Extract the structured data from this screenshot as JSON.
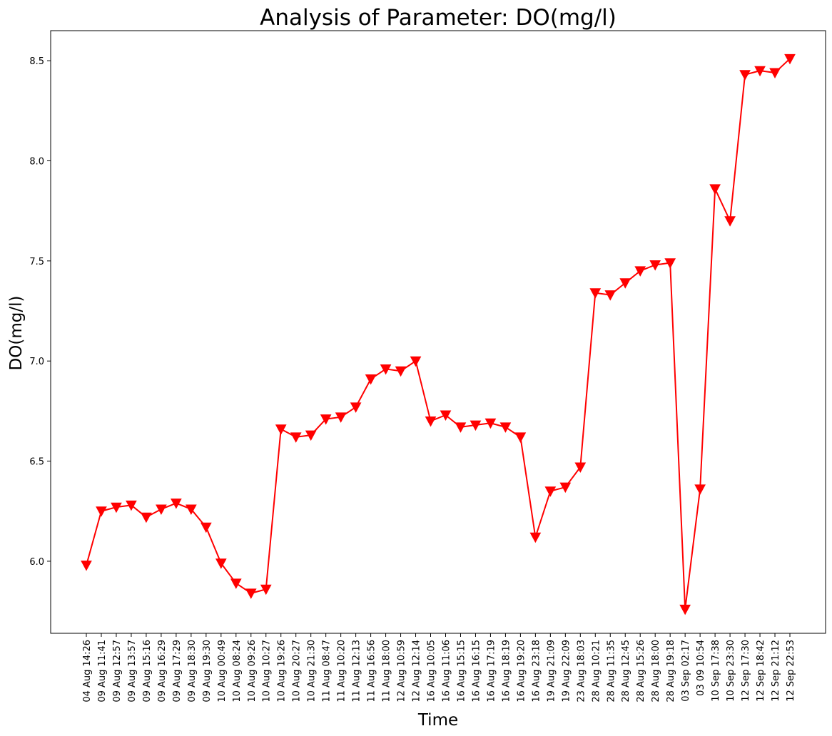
{
  "chart_data": {
    "type": "line",
    "title": "Analysis of Parameter: DO(mg/l)",
    "xlabel": "Time",
    "ylabel": "DO(mg/l)",
    "ylim": [
      5.64,
      8.65
    ],
    "yticks": [
      6.0,
      6.5,
      7.0,
      7.5,
      8.0,
      8.5
    ],
    "ytick_labels": [
      "6.0",
      "6.5",
      "7.0",
      "7.5",
      "8.0",
      "8.5"
    ],
    "grid": false,
    "legend": "none",
    "colors": {
      "series": "#ff0000",
      "axis": "#000000"
    },
    "marker": "triangle-down",
    "categories": [
      "04 Aug 14:26",
      "09 Aug 11:41",
      "09 Aug 12:57",
      "09 Aug 13:57",
      "09 Aug 15:16",
      "09 Aug 16:29",
      "09 Aug 17:29",
      "09 Aug 18:30",
      "09 Aug 19:30",
      "10 Aug 00:49",
      "10 Aug 08:24",
      "10 Aug 09:26",
      "10 Aug 10:27",
      "10 Aug 19:26",
      "10 Aug 20:27",
      "10 Aug 21:30",
      "11 Aug 08:47",
      "11 Aug 10:20",
      "11 Aug 12:13",
      "11 Aug 16:56",
      "11 Aug 18:00",
      "12 Aug 10:59",
      "12 Aug 12:14",
      "16 Aug 10:05",
      "16 Aug 11:06",
      "16 Aug 15:15",
      "16 Aug 16:15",
      "16 Aug 17:19",
      "16 Aug 18:19",
      "16 Aug 19:20",
      "16 Aug 23:18",
      "19 Aug 21:09",
      "19 Aug 22:09",
      "23 Aug 18:03",
      "28 Aug 10:21",
      "28 Aug 11:35",
      "28 Aug 12:45",
      "28 Aug 15:26",
      "28 Aug 18:00",
      "28 Aug 19:18",
      "03 Sep 02:17",
      "03 09 10:54",
      "10 Sep 17:38",
      "10 Sep 23:30",
      "12 Sep 17:30",
      "12 Sep 18:42",
      "12 Sep 21:12",
      "12 Sep 22:53"
    ],
    "series": [
      {
        "values": [
          5.98,
          6.25,
          6.27,
          6.28,
          6.22,
          6.26,
          6.29,
          6.26,
          6.17,
          5.99,
          5.89,
          5.84,
          5.86,
          6.66,
          6.62,
          6.63,
          6.71,
          6.72,
          6.77,
          6.91,
          6.96,
          6.95,
          7.0,
          6.7,
          6.73,
          6.67,
          6.68,
          6.69,
          6.67,
          6.62,
          6.12,
          6.35,
          6.37,
          6.47,
          7.34,
          7.33,
          7.39,
          7.45,
          7.48,
          7.49,
          5.76,
          6.36,
          7.86,
          7.7,
          8.43,
          8.45,
          8.44,
          8.51
        ]
      }
    ]
  }
}
